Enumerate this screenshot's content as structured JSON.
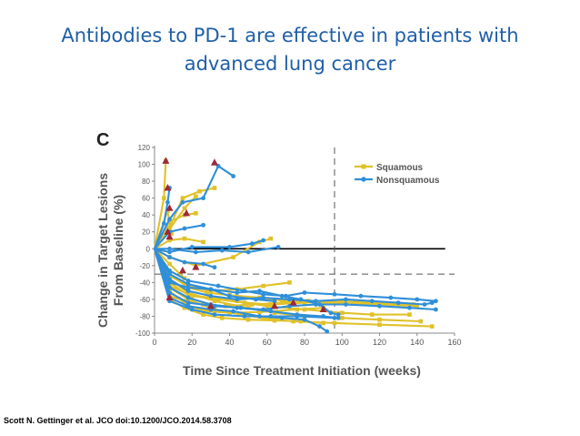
{
  "slide": {
    "title_line1": "Antibodies to PD-1 are effective in patients with",
    "title_line2": "advanced lung cancer",
    "citation": "Scott N. Gettinger et al. JCO doi:10.1200/JCO.2014.58.3708"
  },
  "colors": {
    "title": "#1f5fa8",
    "squamous": "#e0c12a",
    "nonsquamous": "#2f8fd8",
    "progression_marker": "#9b2a3a"
  },
  "chart_data": {
    "type": "line",
    "panel_label": "C",
    "title": "",
    "xlabel": "Time Since Treatment Initiation (weeks)",
    "ylabel_line1": "Change in Target Lesions",
    "ylabel_line2": "From Baseline (%)",
    "xlim": [
      0,
      160
    ],
    "ylim": [
      -100,
      120
    ],
    "xticks": [
      "0",
      "20",
      "40",
      "60",
      "80",
      "100",
      "120",
      "140",
      "160"
    ],
    "yticks": [
      "120",
      "100",
      "80",
      "60",
      "40",
      "20",
      "0",
      "-20",
      "-40",
      "-60",
      "-80",
      "-100"
    ],
    "reference_lines": {
      "y_zero": 0,
      "y_response_threshold": -30,
      "x_dashed": 96
    },
    "legend": {
      "position": "top-right",
      "entries": [
        "Squamous",
        "Nonsquamous"
      ]
    },
    "series": [
      {
        "name": "Squamous",
        "type": "squamous",
        "points": [
          [
            0,
            0
          ],
          [
            5,
            60
          ],
          [
            6,
            104
          ]
        ]
      },
      {
        "name": "Squamous",
        "type": "squamous",
        "points": [
          [
            0,
            0
          ],
          [
            7,
            45
          ],
          [
            9,
            18
          ]
        ]
      },
      {
        "name": "Squamous",
        "type": "squamous",
        "points": [
          [
            0,
            0
          ],
          [
            7,
            20
          ],
          [
            16,
            48
          ],
          [
            22,
            62
          ]
        ]
      },
      {
        "name": "Squamous",
        "type": "squamous",
        "points": [
          [
            0,
            0
          ],
          [
            8,
            32
          ],
          [
            16,
            40
          ],
          [
            22,
            42
          ]
        ]
      },
      {
        "name": "Squamous",
        "type": "squamous",
        "points": [
          [
            0,
            0
          ],
          [
            8,
            25
          ],
          [
            15,
            60
          ],
          [
            24,
            68
          ],
          [
            32,
            72
          ]
        ]
      },
      {
        "name": "Squamous",
        "type": "squamous",
        "points": [
          [
            0,
            0
          ],
          [
            8,
            10
          ],
          [
            16,
            12
          ],
          [
            26,
            8
          ]
        ]
      },
      {
        "name": "Squamous",
        "type": "squamous",
        "points": [
          [
            0,
            0
          ],
          [
            8,
            -10
          ],
          [
            22,
            -20
          ],
          [
            42,
            -10
          ],
          [
            56,
            8
          ],
          [
            62,
            12
          ]
        ]
      },
      {
        "name": "Squamous",
        "type": "squamous",
        "points": [
          [
            0,
            0
          ],
          [
            8,
            -18
          ],
          [
            16,
            -35
          ]
        ]
      },
      {
        "name": "Squamous",
        "type": "squamous",
        "points": [
          [
            0,
            0
          ],
          [
            8,
            -30
          ],
          [
            18,
            -46
          ],
          [
            28,
            -52
          ],
          [
            40,
            -55
          ],
          [
            56,
            -58
          ],
          [
            70,
            -62
          ],
          [
            90,
            -64
          ],
          [
            110,
            -65
          ],
          [
            140,
            -68
          ]
        ]
      },
      {
        "name": "Squamous",
        "type": "squamous",
        "points": [
          [
            0,
            0
          ],
          [
            8,
            -40
          ],
          [
            18,
            -55
          ],
          [
            30,
            -58
          ],
          [
            44,
            -62
          ],
          [
            60,
            -68
          ],
          [
            80,
            -72
          ],
          [
            100,
            -76
          ],
          [
            116,
            -78
          ],
          [
            136,
            -78
          ]
        ]
      },
      {
        "name": "Squamous",
        "type": "squamous",
        "points": [
          [
            0,
            0
          ],
          [
            8,
            -36
          ],
          [
            18,
            -52
          ],
          [
            32,
            -62
          ],
          [
            50,
            -70
          ],
          [
            64,
            -76
          ],
          [
            80,
            -80
          ],
          [
            100,
            -82
          ],
          [
            120,
            -84
          ],
          [
            142,
            -86
          ]
        ]
      },
      {
        "name": "Squamous",
        "type": "squamous",
        "points": [
          [
            0,
            0
          ],
          [
            8,
            -46
          ],
          [
            18,
            -60
          ],
          [
            32,
            -72
          ],
          [
            46,
            -78
          ],
          [
            58,
            -82
          ],
          [
            74,
            -86
          ],
          [
            96,
            -88
          ],
          [
            120,
            -90
          ],
          [
            148,
            -92
          ]
        ]
      },
      {
        "name": "Squamous",
        "type": "squamous",
        "points": [
          [
            0,
            0
          ],
          [
            8,
            -50
          ],
          [
            18,
            -68
          ],
          [
            28,
            -74
          ],
          [
            40,
            -76
          ],
          [
            56,
            -75
          ],
          [
            76,
            -72
          ],
          [
            90,
            -70
          ]
        ]
      },
      {
        "name": "Squamous",
        "type": "squamous",
        "points": [
          [
            0,
            0
          ],
          [
            8,
            -56
          ],
          [
            16,
            -62
          ],
          [
            26,
            -66
          ],
          [
            38,
            -68
          ],
          [
            52,
            -66
          ],
          [
            68,
            -64
          ],
          [
            82,
            -62
          ],
          [
            100,
            -62
          ],
          [
            118,
            -64
          ],
          [
            138,
            -66
          ]
        ]
      },
      {
        "name": "Squamous",
        "type": "squamous",
        "points": [
          [
            0,
            0
          ],
          [
            8,
            -32
          ],
          [
            18,
            -44
          ],
          [
            30,
            -50
          ],
          [
            44,
            -48
          ],
          [
            58,
            -44
          ],
          [
            72,
            -40
          ]
        ]
      },
      {
        "name": "Squamous",
        "type": "squamous",
        "points": [
          [
            0,
            0
          ],
          [
            8,
            -60
          ],
          [
            16,
            -70
          ],
          [
            26,
            -78
          ],
          [
            36,
            -82
          ],
          [
            50,
            -84
          ],
          [
            64,
            -85
          ],
          [
            78,
            -86
          ],
          [
            90,
            -88
          ]
        ]
      },
      {
        "name": "Squamous",
        "type": "squamous",
        "points": [
          [
            0,
            0
          ],
          [
            8,
            -44
          ],
          [
            20,
            -56
          ],
          [
            34,
            -60
          ],
          [
            48,
            -64
          ],
          [
            62,
            -66
          ],
          [
            80,
            -64
          ],
          [
            96,
            -62
          ]
        ]
      },
      {
        "name": "Nonsquamous",
        "type": "nonsquamous",
        "points": [
          [
            0,
            0
          ],
          [
            5,
            30
          ],
          [
            7,
            55
          ],
          [
            8,
            72
          ]
        ]
      },
      {
        "name": "Nonsquamous",
        "type": "nonsquamous",
        "points": [
          [
            0,
            0
          ],
          [
            8,
            35
          ],
          [
            15,
            55
          ],
          [
            26,
            60
          ],
          [
            34,
            98
          ],
          [
            42,
            86
          ]
        ]
      },
      {
        "name": "Nonsquamous",
        "type": "nonsquamous",
        "points": [
          [
            0,
            0
          ],
          [
            8,
            20
          ],
          [
            16,
            24
          ],
          [
            26,
            28
          ]
        ]
      },
      {
        "name": "Nonsquamous",
        "type": "nonsquamous",
        "points": [
          [
            0,
            0
          ],
          [
            8,
            -4
          ],
          [
            20,
            2
          ],
          [
            40,
            2
          ],
          [
            52,
            6
          ],
          [
            58,
            10
          ]
        ]
      },
      {
        "name": "Nonsquamous",
        "type": "nonsquamous",
        "points": [
          [
            0,
            0
          ],
          [
            8,
            0
          ],
          [
            22,
            -4
          ],
          [
            36,
            -2
          ],
          [
            50,
            -4
          ],
          [
            66,
            2
          ]
        ]
      },
      {
        "name": "Nonsquamous",
        "type": "nonsquamous",
        "points": [
          [
            0,
            0
          ],
          [
            8,
            -10
          ],
          [
            16,
            -16
          ],
          [
            26,
            -18
          ],
          [
            32,
            -22
          ]
        ]
      },
      {
        "name": "Nonsquamous",
        "type": "nonsquamous",
        "points": [
          [
            0,
            0
          ],
          [
            8,
            -26
          ],
          [
            18,
            -38
          ],
          [
            34,
            -44
          ],
          [
            48,
            -50
          ],
          [
            58,
            -54
          ],
          [
            70,
            -56
          ],
          [
            80,
            -52
          ],
          [
            96,
            -54
          ],
          [
            110,
            -56
          ],
          [
            126,
            -58
          ],
          [
            140,
            -60
          ],
          [
            150,
            -62
          ]
        ]
      },
      {
        "name": "Nonsquamous",
        "type": "nonsquamous",
        "points": [
          [
            0,
            0
          ],
          [
            8,
            -36
          ],
          [
            18,
            -50
          ],
          [
            30,
            -56
          ],
          [
            44,
            -60
          ],
          [
            58,
            -58
          ],
          [
            72,
            -60
          ],
          [
            86,
            -62
          ],
          [
            102,
            -60
          ],
          [
            116,
            -62
          ],
          [
            130,
            -64
          ],
          [
            144,
            -66
          ],
          [
            148,
            -64
          ]
        ]
      },
      {
        "name": "Nonsquamous",
        "type": "nonsquamous",
        "points": [
          [
            0,
            0
          ],
          [
            8,
            -46
          ],
          [
            18,
            -58
          ],
          [
            30,
            -66
          ],
          [
            44,
            -70
          ],
          [
            58,
            -72
          ],
          [
            72,
            -68
          ],
          [
            86,
            -66
          ],
          [
            102,
            -66
          ],
          [
            120,
            -68
          ],
          [
            136,
            -70
          ],
          [
            150,
            -72
          ]
        ]
      },
      {
        "name": "Nonsquamous",
        "type": "nonsquamous",
        "points": [
          [
            0,
            0
          ],
          [
            8,
            -52
          ],
          [
            18,
            -64
          ],
          [
            32,
            -68
          ],
          [
            46,
            -70
          ],
          [
            62,
            -74
          ],
          [
            76,
            -78
          ],
          [
            90,
            -80
          ],
          [
            98,
            -82
          ]
        ]
      },
      {
        "name": "Nonsquamous",
        "type": "nonsquamous",
        "points": [
          [
            0,
            0
          ],
          [
            8,
            -40
          ],
          [
            18,
            -46
          ],
          [
            30,
            -48
          ],
          [
            44,
            -52
          ],
          [
            56,
            -50
          ],
          [
            68,
            -56
          ],
          [
            78,
            -60
          ],
          [
            88,
            -66
          ],
          [
            94,
            -76
          ],
          [
            98,
            -78
          ]
        ]
      },
      {
        "name": "Nonsquamous",
        "type": "nonsquamous",
        "points": [
          [
            0,
            0
          ],
          [
            8,
            -58
          ],
          [
            18,
            -68
          ],
          [
            30,
            -72
          ],
          [
            42,
            -74
          ],
          [
            56,
            -80
          ],
          [
            68,
            -82
          ],
          [
            80,
            -84
          ],
          [
            88,
            -92
          ],
          [
            92,
            -98
          ]
        ]
      },
      {
        "name": "Nonsquamous",
        "type": "nonsquamous",
        "points": [
          [
            0,
            0
          ],
          [
            8,
            -62
          ],
          [
            20,
            -72
          ],
          [
            32,
            -78
          ],
          [
            48,
            -80
          ],
          [
            62,
            -80
          ],
          [
            76,
            -80
          ],
          [
            96,
            -82
          ]
        ]
      },
      {
        "name": "Nonsquamous",
        "type": "nonsquamous",
        "points": [
          [
            0,
            0
          ],
          [
            8,
            -30
          ],
          [
            18,
            -42
          ],
          [
            30,
            -48
          ],
          [
            40,
            -56
          ],
          [
            54,
            -60
          ],
          [
            64,
            -62
          ]
        ]
      }
    ],
    "progression_markers": [
      [
        6,
        104
      ],
      [
        7,
        72
      ],
      [
        8,
        48
      ],
      [
        7,
        20
      ],
      [
        17,
        42
      ],
      [
        32,
        102
      ],
      [
        15,
        -26
      ],
      [
        22,
        -22
      ],
      [
        8,
        -58
      ],
      [
        30,
        -68
      ],
      [
        64,
        -68
      ],
      [
        74,
        -64
      ],
      [
        90,
        -72
      ],
      [
        8,
        14
      ]
    ]
  }
}
